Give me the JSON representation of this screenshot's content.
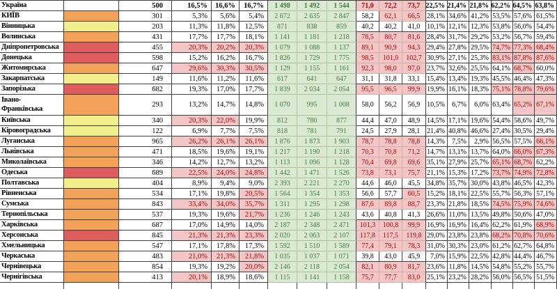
{
  "table": {
    "columns": [
      "region",
      "status-color",
      "survey-count",
      "pct-early-1",
      "pct-early-2",
      "pct-early-3",
      "cases-1",
      "cases-2",
      "cases-3",
      "rate-1",
      "rate-2",
      "rate-3",
      "pct-mid-1",
      "pct-mid-2",
      "pct-mid-3",
      "pct-late-1",
      "pct-late-2",
      "pct-late-3"
    ],
    "colors": {
      "grid": "#3f3f3f",
      "swatch_orange": "#F2A159",
      "swatch_yellow": "#F1EE8B",
      "swatch_red": "#DF5C5C",
      "highlight_bg": "#F3C6C6",
      "highlight_text": "#B00000",
      "highlight_line": "#D9ACAC",
      "green_bg": "#DBE9D3",
      "green_text": "#3E7D3E",
      "green_line": "#A9C49C"
    },
    "rows": [
      {
        "region": "Україна",
        "swatch": "none",
        "count": "500",
        "bold": true,
        "pa": [
          "16,5%",
          "16,6%",
          "16,7%"
        ],
        "paF": [
          0,
          0,
          0
        ],
        "g": [
          "1 498",
          "1 492",
          "1 544"
        ],
        "r": [
          "71,0",
          "72,2",
          "73,7"
        ],
        "rF": [
          1,
          1,
          1
        ],
        "pb": [
          "22,5%",
          "21,4%",
          "21,8%"
        ],
        "pc": [
          "62,2%",
          "64,5%",
          "63,8%"
        ],
        "pcF": [
          0,
          0,
          0
        ]
      },
      {
        "region": "КИЇВ",
        "swatch": "orange",
        "count": "301",
        "pa": [
          "5,3%",
          "5,6%",
          "5,4%"
        ],
        "paF": [
          0,
          0,
          0
        ],
        "g": [
          "2 672",
          "2 635",
          "2 847"
        ],
        "r": [
          "58,2",
          "62,1",
          "66,5"
        ],
        "rF": [
          0,
          1,
          1
        ],
        "pb": [
          "28,1%",
          "34,6%",
          "41,2%"
        ],
        "pc": [
          "53,5%",
          "57,6%",
          "61,5%"
        ],
        "pcF": [
          0,
          0,
          0
        ]
      },
      {
        "region": "Вінницька",
        "swatch": "yellow",
        "count": "203",
        "pa": [
          "11,3%",
          "11,8%",
          "12,5%"
        ],
        "paF": [
          0,
          0,
          0
        ],
        "g": [
          "871",
          "838",
          "859"
        ],
        "r": [
          "40,2",
          "40,2",
          "41,0"
        ],
        "rF": [
          0,
          0,
          0
        ],
        "pb": [
          "10,1%",
          "12,1%",
          "12,3%"
        ],
        "pc": [
          "53,8%",
          "56,0%",
          "54,4%"
        ],
        "pcF": [
          0,
          0,
          0
        ]
      },
      {
        "region": "Волинська",
        "swatch": "orange",
        "count": "431",
        "pa": [
          "17,7%",
          "17,7%",
          "18,1%"
        ],
        "paF": [
          0,
          0,
          0
        ],
        "g": [
          "1 141",
          "1 181",
          "1 218"
        ],
        "r": [
          "78,5",
          "80,7",
          "81,6"
        ],
        "rF": [
          1,
          1,
          1
        ],
        "pb": [
          "28,4%",
          "31,7%",
          "29,2%"
        ],
        "pc": [
          "53,2%",
          "56,7%",
          "59,4%"
        ],
        "pcF": [
          0,
          0,
          0
        ]
      },
      {
        "region": "Дніпропетровська",
        "swatch": "red",
        "count": "455",
        "pa": [
          "20,3%",
          "20,2%",
          "20,3%"
        ],
        "paF": [
          1,
          1,
          1
        ],
        "g": [
          "1 079",
          "1 088",
          "1 137"
        ],
        "r": [
          "89,1",
          "90,9",
          "94,3"
        ],
        "rF": [
          1,
          1,
          1
        ],
        "pb": [
          "29,4%",
          "27,8%",
          "29,5%"
        ],
        "pc": [
          "74,7%",
          "77,3%",
          "68,4%"
        ],
        "pcF": [
          1,
          1,
          1
        ]
      },
      {
        "region": "Донецька",
        "swatch": "red",
        "count": "598",
        "pa": [
          "15,2%",
          "16,2%",
          "16,7%"
        ],
        "paF": [
          0,
          0,
          0
        ],
        "g": [
          "1 826",
          "1 729",
          "1 775"
        ],
        "r": [
          "98,5",
          "101,0",
          "102,7"
        ],
        "rF": [
          1,
          1,
          1
        ],
        "pb": [
          "30,9%",
          "27,1%",
          "25,3%"
        ],
        "pc": [
          "83,1%",
          "87,8%",
          "87,6%"
        ],
        "pcF": [
          1,
          1,
          1
        ]
      },
      {
        "region": "Житомирська",
        "swatch": "orange",
        "count": "647",
        "pa": [
          "29,6%",
          "30,3%",
          "30,5%"
        ],
        "paF": [
          1,
          1,
          1
        ],
        "g": [
          "1 129",
          "1 155",
          "1 161"
        ],
        "r": [
          "92,3",
          "98,0",
          "97,0"
        ],
        "rF": [
          1,
          1,
          1
        ],
        "pb": [
          "23,7%",
          "32,6%",
          "25,5%"
        ],
        "pc": [
          "64,1%",
          "68,7%",
          "60,0%"
        ],
        "pcF": [
          0,
          1,
          0
        ]
      },
      {
        "region": "Закарпатська",
        "swatch": "yellow",
        "count": "149",
        "pa": [
          "11,6%",
          "11,2%",
          "11,6%"
        ],
        "paF": [
          0,
          0,
          0
        ],
        "g": [
          "617",
          "641",
          "647"
        ],
        "r": [
          "31,1",
          "31,8",
          "33,1"
        ],
        "rF": [
          0,
          0,
          0
        ],
        "pb": [
          "15,4%",
          "13,4%",
          "19,3%"
        ],
        "pc": [
          "45,5%",
          "46,4%",
          "47,3%"
        ],
        "pcF": [
          0,
          0,
          0
        ]
      },
      {
        "region": "Запорізька",
        "swatch": "red",
        "count": "682",
        "pa": [
          "19,3%",
          "17,0%",
          "17,7%"
        ],
        "paF": [
          0,
          0,
          0
        ],
        "g": [
          "1 839",
          "2 034",
          "2 054"
        ],
        "r": [
          "95,5",
          "96,5",
          "99,9"
        ],
        "rF": [
          1,
          1,
          1
        ],
        "pb": [
          "19,9%",
          "16,1%",
          "18,3%"
        ],
        "pc": [
          "75,1%",
          "78,8%",
          "79,6%"
        ],
        "pcF": [
          1,
          1,
          1
        ]
      },
      {
        "region": "Івано-\nФранківська",
        "swatch": "orange",
        "count": "293",
        "tall": true,
        "pa": [
          "13,2%",
          "14,7%",
          "14,8%"
        ],
        "paF": [
          0,
          0,
          0
        ],
        "g": [
          "1 070",
          "995",
          "1 008"
        ],
        "r": [
          "58,0",
          "56,2",
          "56,9"
        ],
        "rF": [
          0,
          0,
          0
        ],
        "pb": [
          "10,5%",
          "6,7%",
          "6,0%"
        ],
        "pc": [
          "63,4%",
          "65,2%",
          "67,1%"
        ],
        "pcF": [
          0,
          1,
          1
        ]
      },
      {
        "region": "Київська",
        "swatch": "yellow",
        "count": "340",
        "pa": [
          "20,3%",
          "22,0%",
          "19,9%"
        ],
        "paF": [
          1,
          1,
          0
        ],
        "g": [
          "812",
          "780",
          "877"
        ],
        "r": [
          "44,4",
          "47,0",
          "48,9"
        ],
        "rF": [
          0,
          0,
          0
        ],
        "pb": [
          "14,5%",
          "17,1%",
          "19,6%"
        ],
        "pc": [
          "54,4%",
          "58,6%",
          "49,7%"
        ],
        "pcF": [
          0,
          0,
          0
        ]
      },
      {
        "region": "Кіровоградська",
        "swatch": "yellow",
        "count": "122",
        "pa": [
          "6,9%",
          "7,7%",
          "7,5%"
        ],
        "paF": [
          0,
          0,
          0
        ],
        "g": [
          "818",
          "781",
          "791"
        ],
        "r": [
          "24,5",
          "27,9",
          "28,1"
        ],
        "rF": [
          0,
          0,
          0
        ],
        "pb": [
          "21,4%",
          "40,8%",
          "46,6%"
        ],
        "pc": [
          "27,4%",
          "30,5%",
          "29,4%"
        ],
        "pcF": [
          0,
          0,
          0
        ]
      },
      {
        "region": "Луганська",
        "swatch": "orange",
        "count": "965",
        "pa": [
          "26,2%",
          "26,1%",
          "26,1%"
        ],
        "paF": [
          1,
          1,
          1
        ],
        "g": [
          "1 876",
          "1 873",
          "1 903"
        ],
        "r": [
          "78,7",
          "78,8",
          "78,8"
        ],
        "rF": [
          1,
          1,
          1
        ],
        "pb": [
          "14,3%",
          "7,5%",
          "2,9%"
        ],
        "pc": [
          "56,5%",
          "57,5%",
          "66,1%"
        ],
        "pcF": [
          0,
          0,
          1
        ]
      },
      {
        "region": "Львівська",
        "swatch": "orange",
        "count": "471",
        "pa": [
          "18,5%",
          "19,6%",
          "19,1%"
        ],
        "paF": [
          0,
          0,
          0
        ],
        "g": [
          "1 217",
          "1 190",
          "1 218"
        ],
        "r": [
          "70,3",
          "70,8",
          "71,2"
        ],
        "rF": [
          1,
          1,
          1
        ],
        "pb": [
          "14,7%",
          "13,1%",
          "13,7%"
        ],
        "pc": [
          "64,0%",
          "66,0%",
          "67,3%"
        ],
        "pcF": [
          0,
          1,
          1
        ]
      },
      {
        "region": "Миколаївська",
        "swatch": "orange",
        "count": "346",
        "pa": [
          "14,2%",
          "12,7%",
          "13,2%"
        ],
        "paF": [
          0,
          0,
          0
        ],
        "g": [
          "1 113",
          "1 096",
          "1 128"
        ],
        "r": [
          "70,4",
          "69,8",
          "69,6"
        ],
        "rF": [
          1,
          1,
          1
        ],
        "pb": [
          "35,1%",
          "27,9%",
          "25,7%"
        ],
        "pc": [
          "65,1%",
          "68,7%",
          "62,2%"
        ],
        "pcF": [
          1,
          1,
          0
        ]
      },
      {
        "region": "Одеська",
        "swatch": "red",
        "count": "689",
        "pa": [
          "22,5%",
          "24,0%",
          "24,8%"
        ],
        "paF": [
          1,
          1,
          1
        ],
        "g": [
          "1 442",
          "1 471",
          "1 526"
        ],
        "r": [
          "73,8",
          "73,1",
          "75,7"
        ],
        "rF": [
          1,
          1,
          1
        ],
        "pb": [
          "21,1%",
          "15,3%",
          "17,2%"
        ],
        "pc": [
          "73,7%",
          "74,9%",
          "72,8%"
        ],
        "pcF": [
          1,
          1,
          1
        ]
      },
      {
        "region": "Полтавська",
        "swatch": "yellow",
        "count": "404",
        "pa": [
          "8,9%",
          "9,4%",
          "9,0%"
        ],
        "paF": [
          0,
          0,
          0
        ],
        "g": [
          "2 393",
          "2 221",
          "2 270"
        ],
        "r": [
          "44,6",
          "46,0",
          "45,5"
        ],
        "rF": [
          0,
          0,
          0
        ],
        "pb": [
          "34,8%",
          "35,7%",
          "30,0%"
        ],
        "pc": [
          "43,8%",
          "46,5%",
          "42,3%"
        ],
        "pcF": [
          0,
          0,
          0
        ]
      },
      {
        "region": "Рівненська",
        "swatch": "orange",
        "count": "534",
        "pa": [
          "17,1%",
          "19,8%",
          "20,5%"
        ],
        "paF": [
          0,
          0,
          1
        ],
        "g": [
          "1 564",
          "1 354",
          "1 353"
        ],
        "r": [
          "56,6",
          "57,7",
          "60,5"
        ],
        "rF": [
          0,
          0,
          1
        ],
        "pb": [
          "15,2%",
          "18,1%",
          "22,5%"
        ],
        "pc": [
          "55,7%",
          "56,3%",
          "57,1%"
        ],
        "pcF": [
          0,
          0,
          0
        ]
      },
      {
        "region": "Сумська",
        "swatch": "orange",
        "count": "843",
        "pa": [
          "33,4%",
          "34,0%",
          "35,7%"
        ],
        "paF": [
          1,
          1,
          1
        ],
        "g": [
          "1 311",
          "1 295",
          "1 298"
        ],
        "r": [
          "87,6",
          "89,8",
          "88,7"
        ],
        "rF": [
          1,
          1,
          1
        ],
        "pb": [
          "23,3%",
          "21,8%",
          "18,5%"
        ],
        "pc": [
          "74,5%",
          "75,9%",
          "74,6%"
        ],
        "pcF": [
          1,
          1,
          1
        ]
      },
      {
        "region": "Тернопільська",
        "swatch": "orange",
        "count": "537",
        "pa": [
          "19,3%",
          "19,6%",
          "21,7%"
        ],
        "paF": [
          0,
          0,
          1
        ],
        "g": [
          "1 236",
          "1 246",
          "1 243"
        ],
        "r": [
          "43,6",
          "40,8",
          "41,3"
        ],
        "rF": [
          0,
          0,
          0
        ],
        "pb": [
          "26,6%",
          "11,0%",
          "13,5%"
        ],
        "pc": [
          "49,8%",
          "50,6%",
          "47,0%"
        ],
        "pcF": [
          0,
          0,
          0
        ]
      },
      {
        "region": "Харківська",
        "swatch": "orange",
        "count": "687",
        "pa": [
          "17,0%",
          "14,9%",
          "14,0%"
        ],
        "paF": [
          0,
          0,
          0
        ],
        "g": [
          "2 187",
          "2 348",
          "2 471"
        ],
        "r": [
          "101,3",
          "100,8",
          "99,9"
        ],
        "rF": [
          1,
          1,
          1
        ],
        "pb": [
          "16,9%",
          "16,9%",
          "16,4%"
        ],
        "pc": [
          "62,2%",
          "61,9%",
          "68,9%"
        ],
        "pcF": [
          0,
          0,
          1
        ]
      },
      {
        "region": "Херсонська",
        "swatch": "red",
        "count": "845",
        "pa": [
          "21,3%",
          "21,3%",
          "23,3%"
        ],
        "paF": [
          1,
          1,
          1
        ],
        "g": [
          "2 020",
          "2 063",
          "2 107"
        ],
        "r": [
          "117,8",
          "117,5",
          "119,8"
        ],
        "rF": [
          1,
          1,
          1
        ],
        "pb": [
          "29,0%",
          "23,8%",
          "23,8%"
        ],
        "pc": [
          "68,2%",
          "70,8%",
          "70,6%"
        ],
        "pcF": [
          1,
          1,
          1
        ]
      },
      {
        "region": "Хмельницька",
        "swatch": "orange",
        "count": "547",
        "pa": [
          "17,1%",
          "17,8%",
          "17,3%"
        ],
        "paF": [
          0,
          0,
          0
        ],
        "g": [
          "1 592",
          "1 510",
          "1 589"
        ],
        "r": [
          "77,4",
          "79,1",
          "78,3"
        ],
        "rF": [
          1,
          1,
          1
        ],
        "pb": [
          "31,0%",
          "30,3%",
          "23,0%"
        ],
        "pc": [
          "61,2%",
          "62,7%",
          "64,8%"
        ],
        "pcF": [
          0,
          0,
          0
        ]
      },
      {
        "region": "Черкаська",
        "swatch": "orange",
        "count": "483",
        "pa": [
          "21,0%",
          "21,3%",
          "21,8%"
        ],
        "paF": [
          1,
          1,
          1
        ],
        "g": [
          "1 035",
          "1 037",
          "1 071"
        ],
        "r": [
          "39,8",
          "43,0",
          "45,9"
        ],
        "rF": [
          0,
          0,
          0
        ],
        "pb": [
          "7,0%",
          "15,9%",
          "22,5%"
        ],
        "pc": [
          "42,8%",
          "44,4%",
          "46,7%"
        ],
        "pcF": [
          0,
          0,
          0
        ]
      },
      {
        "region": "Чернівецька",
        "swatch": "orange",
        "count": "854",
        "pa": [
          "19,3%",
          "19,2%",
          "20,0%"
        ],
        "paF": [
          0,
          0,
          1
        ],
        "g": [
          "2 146",
          "2 118",
          "2 054"
        ],
        "r": [
          "82,1",
          "80,9",
          "81,7"
        ],
        "rF": [
          1,
          1,
          1
        ],
        "pb": [
          "23,6%",
          "11,8%",
          "14,5%"
        ],
        "pc": [
          "54,8%",
          "55,2%",
          "55,7%"
        ],
        "pcF": [
          0,
          0,
          0
        ]
      },
      {
        "region": "Чернігівська",
        "swatch": "orange",
        "count": "413",
        "pa": [
          "20,1%",
          "18,9%",
          "18,6%"
        ],
        "paF": [
          1,
          0,
          0
        ],
        "g": [
          "1 115",
          "1 141",
          "1 158"
        ],
        "r": [
          "75,7",
          "77,7",
          "83,0"
        ],
        "rF": [
          1,
          1,
          1
        ],
        "pb": [
          "25,1%",
          "23,2%",
          "28,2%"
        ],
        "pc": [
          "56,0%",
          "56,5%",
          "51,5%"
        ],
        "pcF": [
          0,
          0,
          0
        ]
      }
    ]
  }
}
